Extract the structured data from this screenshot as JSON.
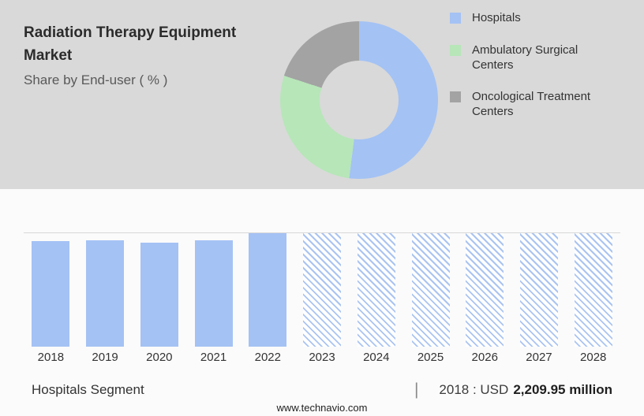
{
  "header": {
    "title": "Radiation Therapy Equipment Market",
    "subtitle": "Share by End-user ( % )"
  },
  "legend": {
    "items": [
      {
        "label": "Hospitals",
        "color": "#a4c2f4"
      },
      {
        "label": "Ambulatory Surgical Centers",
        "color": "#b7e6b9"
      },
      {
        "label": "Oncological Treatment Centers",
        "color": "#a3a3a3"
      }
    ]
  },
  "chart_data": [
    {
      "type": "pie",
      "subtype": "donut",
      "title": "Share by End-user ( % )",
      "labels": [
        "Hospitals",
        "Ambulatory Surgical Centers",
        "Oncological Treatment Centers"
      ],
      "values": [
        52,
        28,
        20
      ],
      "colors": [
        "#a4c2f4",
        "#b7e6b9",
        "#a3a3a3"
      ],
      "legend_position": "right"
    },
    {
      "type": "bar",
      "categories": [
        "2018",
        "2019",
        "2020",
        "2021",
        "2022",
        "2023",
        "2024",
        "2025",
        "2026",
        "2027",
        "2028"
      ],
      "values": [
        93,
        94,
        92,
        94,
        100,
        100,
        100,
        100,
        100,
        100,
        100
      ],
      "unit": "relative bar height (% of max)",
      "ylim": [
        0,
        100
      ],
      "forecast_start": "2023",
      "bar_color": "#a4c2f4",
      "grid": "top gridline only",
      "known_point": {
        "year": "2018",
        "value_label": "USD 2,209.95 million"
      }
    }
  ],
  "footer": {
    "segment_label": "Hospitals Segment",
    "separator": "|",
    "value_prefix": "2018 : USD",
    "value_bold": "2,209.95 million"
  },
  "watermark": "www.technavio.com"
}
